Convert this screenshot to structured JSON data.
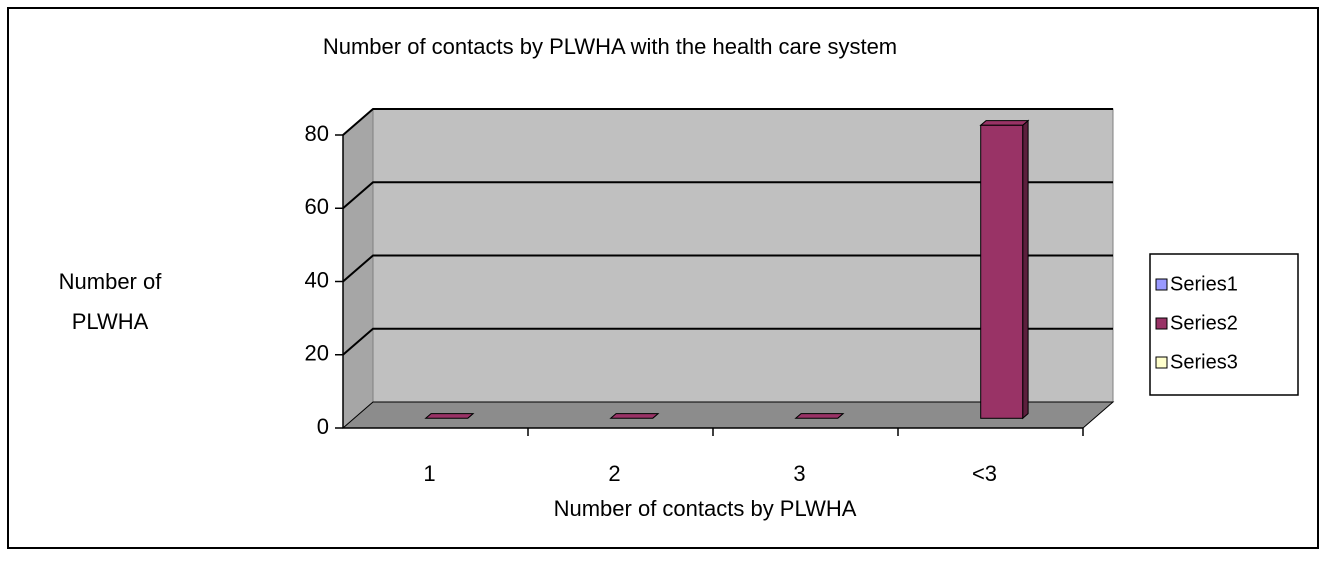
{
  "chart_data": {
    "type": "bar3d",
    "title": "Number of contacts by PLWHA with the health care system",
    "y_label": "Number of PLWHA",
    "x_label": "Number of contacts by PLWHA",
    "categories": [
      "1",
      "2",
      "3",
      "<3"
    ],
    "series": [
      {
        "name": "Series1",
        "color": "#9999ff",
        "values": [
          null,
          null,
          null,
          null
        ]
      },
      {
        "name": "Series2",
        "color": "#993366",
        "values": [
          0,
          0,
          0,
          80
        ]
      },
      {
        "name": "Series3",
        "color": "#ffffcc",
        "values": [
          null,
          null,
          null,
          null
        ]
      }
    ],
    "ylim": [
      0,
      80
    ],
    "yticks": [
      0,
      20,
      40,
      60,
      80
    ],
    "grid": true,
    "legend": "right"
  }
}
